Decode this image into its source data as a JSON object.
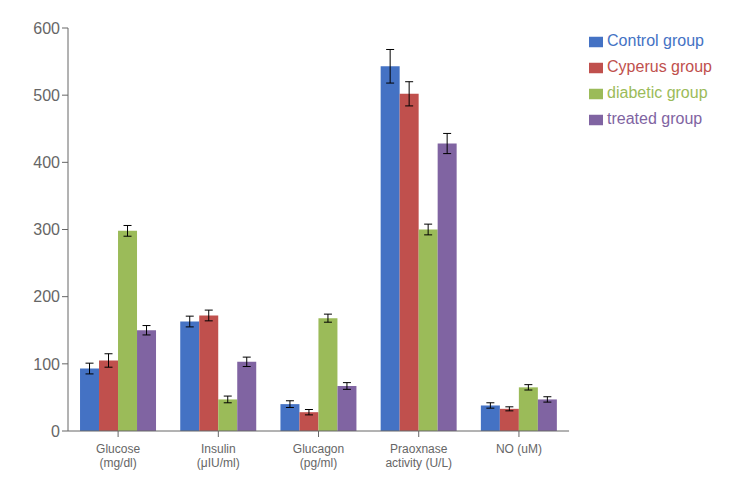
{
  "chart_data": {
    "type": "bar",
    "categories": [
      "Glucose (mg/dl)",
      "Insulin (μIU/ml)",
      "Glucagon (pg/ml)",
      "Praoxnase activity (U/L)",
      "NO (uM)"
    ],
    "series": [
      {
        "name": "Control group",
        "color": "#4472C4",
        "values": [
          93,
          163,
          40,
          543,
          38
        ],
        "errors": [
          8,
          8,
          5,
          25,
          4
        ]
      },
      {
        "name": "Cyperus group",
        "color": "#C0504D",
        "values": [
          105,
          172,
          28,
          502,
          33
        ],
        "errors": [
          10,
          8,
          4,
          18,
          3
        ]
      },
      {
        "name": "diabetic group",
        "color": "#9BBB59",
        "values": [
          298,
          47,
          168,
          300,
          65
        ],
        "errors": [
          8,
          5,
          6,
          8,
          4
        ]
      },
      {
        "name": "treated group",
        "color": "#8064A2",
        "values": [
          150,
          103,
          67,
          428,
          47
        ],
        "errors": [
          7,
          7,
          5,
          15,
          4
        ]
      }
    ],
    "ylim": [
      0,
      600
    ],
    "yticks": [
      0,
      100,
      200,
      300,
      400,
      500,
      600
    ],
    "grid": false,
    "legend": "right"
  }
}
